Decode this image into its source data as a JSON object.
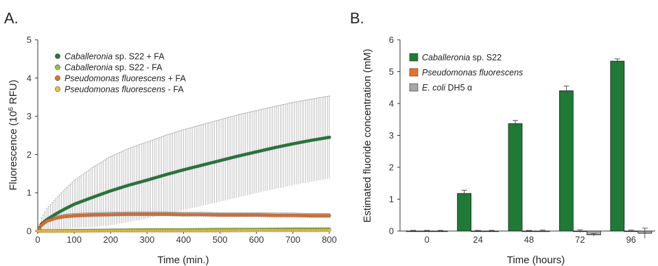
{
  "chart_data": [
    {
      "panel_label": "A.",
      "type": "scatter",
      "xlabel": "Time (min.)",
      "ylabel_prefix": "Fluorescence (10",
      "ylabel_sup": "6",
      "ylabel_suffix": " RFU)",
      "xlim": [
        0,
        800
      ],
      "ylim": [
        0,
        5
      ],
      "xticks": [
        0,
        100,
        200,
        300,
        400,
        500,
        600,
        700,
        800
      ],
      "yticks": [
        0,
        1,
        2,
        3,
        4,
        5
      ],
      "legend": "top-left",
      "series": [
        {
          "name_italic": "Caballeronia",
          "name_rest": " sp. S22 + FA",
          "color": "#1e7a35",
          "x": [
            0,
            10,
            25,
            50,
            75,
            100,
            150,
            200,
            250,
            300,
            350,
            400,
            450,
            500,
            550,
            600,
            650,
            700,
            750,
            800
          ],
          "y": [
            0.0,
            0.18,
            0.3,
            0.45,
            0.58,
            0.7,
            0.88,
            1.05,
            1.2,
            1.33,
            1.47,
            1.6,
            1.72,
            1.84,
            1.96,
            2.07,
            2.18,
            2.28,
            2.37,
            2.45
          ],
          "err": [
            0.0,
            0.16,
            0.28,
            0.4,
            0.52,
            0.62,
            0.78,
            0.9,
            0.96,
            1.0,
            1.03,
            1.05,
            1.06,
            1.07,
            1.08,
            1.08,
            1.08,
            1.08,
            1.08,
            1.08
          ]
        },
        {
          "name_italic": "Caballeronia",
          "name_rest": " sp. S22 - FA",
          "color": "#8cc63f",
          "x": [
            0,
            100,
            200,
            300,
            400,
            500,
            600,
            700,
            800
          ],
          "y": [
            0.0,
            0.01,
            0.02,
            0.03,
            0.03,
            0.04,
            0.04,
            0.05,
            0.05
          ],
          "err": [
            0.0,
            0.03,
            0.03,
            0.03,
            0.03,
            0.03,
            0.03,
            0.03,
            0.03
          ]
        },
        {
          "name_italic": "Pseudomonas fluorescens",
          "name_rest": " + FA",
          "color": "#e8702a",
          "x": [
            0,
            10,
            25,
            50,
            75,
            100,
            150,
            200,
            250,
            300,
            350,
            400,
            450,
            500,
            550,
            600,
            650,
            700,
            750,
            800
          ],
          "y": [
            0.0,
            0.15,
            0.26,
            0.34,
            0.38,
            0.4,
            0.42,
            0.43,
            0.44,
            0.44,
            0.44,
            0.43,
            0.43,
            0.42,
            0.42,
            0.42,
            0.41,
            0.41,
            0.4,
            0.4
          ],
          "err": [
            0.0,
            0.04,
            0.05,
            0.06,
            0.06,
            0.06,
            0.06,
            0.06,
            0.06,
            0.06,
            0.06,
            0.06,
            0.06,
            0.06,
            0.06,
            0.06,
            0.06,
            0.06,
            0.06,
            0.06
          ]
        },
        {
          "name_italic": "Pseudomonas fluorescens",
          "name_rest": " - FA",
          "color": "#f2c12e",
          "x": [
            0,
            100,
            200,
            300,
            400,
            500,
            600,
            700,
            800
          ],
          "y": [
            0.0,
            0.0,
            0.01,
            0.01,
            0.01,
            0.01,
            0.02,
            0.02,
            0.02
          ],
          "err": [
            0.0,
            0.02,
            0.02,
            0.02,
            0.02,
            0.02,
            0.02,
            0.02,
            0.02
          ]
        }
      ]
    },
    {
      "panel_label": "B.",
      "type": "bar",
      "xlabel": "Time (hours)",
      "ylabel": "Estimated fluoride concentration (mM)",
      "categories": [
        "0",
        "24",
        "48",
        "72",
        "96"
      ],
      "ylim": [
        0,
        6
      ],
      "yticks": [
        0,
        1,
        2,
        3,
        4,
        5,
        6
      ],
      "legend": "top-left",
      "series": [
        {
          "name_italic": "Caballeronia",
          "name_rest": " sp. S22",
          "color": "#1e7a35",
          "values": [
            0.0,
            1.18,
            3.37,
            4.4,
            5.33
          ],
          "err": [
            0.02,
            0.1,
            0.1,
            0.15,
            0.07
          ]
        },
        {
          "name_italic": "Pseudomonas fluorescens",
          "name_rest": "",
          "color": "#e8702a",
          "values": [
            0.0,
            0.0,
            0.0,
            0.0,
            0.0
          ],
          "err": [
            0.02,
            0.02,
            0.02,
            0.04,
            0.03
          ]
        },
        {
          "name_italic": "E. coli",
          "name_rest": " DH5 α",
          "color": "#a6a6a6",
          "values": [
            0.0,
            0.0,
            0.0,
            -0.12,
            -0.07
          ],
          "err": [
            0.02,
            0.02,
            0.03,
            0.04,
            0.16
          ]
        }
      ]
    }
  ]
}
